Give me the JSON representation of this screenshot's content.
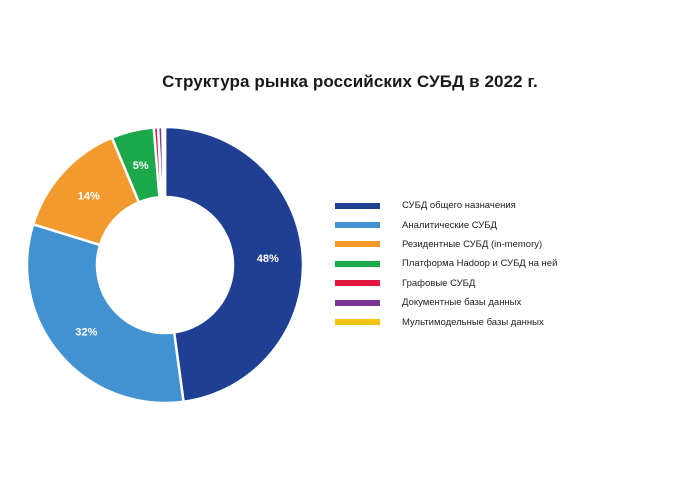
{
  "chart_data": {
    "type": "pie",
    "variant": "donut",
    "title": "Структура рынка российских СУБД в 2022 г.",
    "categories": [
      "СУБД общего назначения",
      "Аналитические СУБД",
      "Резидентные СУБД (in-memory)",
      "Платформа Hadoop и СУБД на ней",
      "Графовые СУБД",
      "Документные базы данных",
      "Мультимодельные базы данных"
    ],
    "values": [
      48,
      32,
      14,
      5,
      0.5,
      0.5,
      0.3
    ],
    "data_labels": [
      "48%",
      "32%",
      "14%",
      "5%",
      "",
      "",
      ""
    ],
    "colors": [
      "#1f3f93",
      "#4291d0",
      "#f39a2e",
      "#1ba84a",
      "#e0173f",
      "#7a3595",
      "#f3c212"
    ],
    "legend_position": "right",
    "start_angle_deg": 0,
    "direction": "clockwise"
  },
  "legend": {
    "items": [
      {
        "label": "СУБД общего назначения",
        "color": "#1f3f93"
      },
      {
        "label": "Аналитические СУБД",
        "color": "#4291d0"
      },
      {
        "label": "Резидентные СУБД (in-memory)",
        "color": "#f39a2e"
      },
      {
        "label": "Платформа Hadoop и СУБД на ней",
        "color": "#1ba84a"
      },
      {
        "label": "Графовые СУБД",
        "color": "#e0173f"
      },
      {
        "label": "Документные базы данных",
        "color": "#7a3595"
      },
      {
        "label": "Мультимодельные базы данных",
        "color": "#f3c212"
      }
    ]
  }
}
